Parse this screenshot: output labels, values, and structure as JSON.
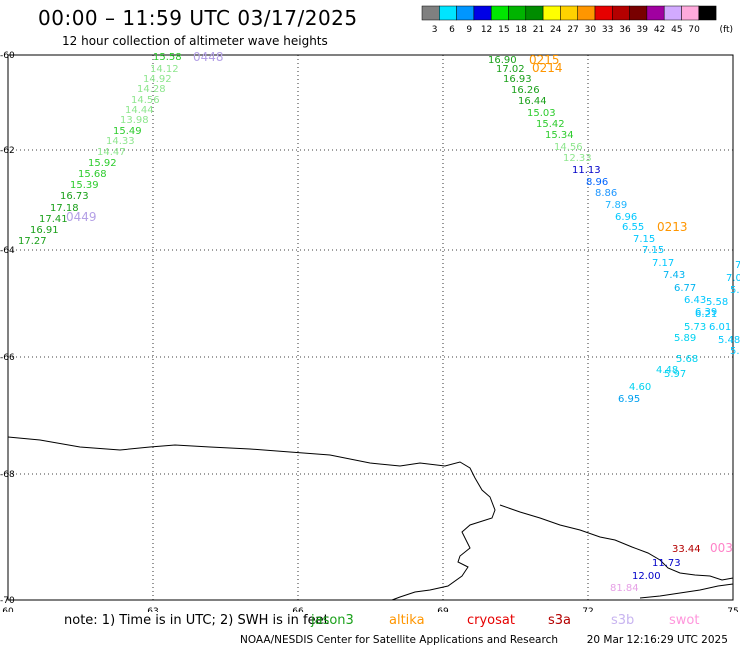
{
  "header": {
    "title": "00:00 – 11:59 UTC 03/17/2025",
    "subtitle": "12 hour collection of altimeter wave heights"
  },
  "colorbar": {
    "unit": "(ft)",
    "bins": [
      {
        "label": "3",
        "color": "#808080"
      },
      {
        "label": "6",
        "color": "#00e5ff"
      },
      {
        "label": "9",
        "color": "#0096ff"
      },
      {
        "label": "12",
        "color": "#0000e6"
      },
      {
        "label": "15",
        "color": "#00e600"
      },
      {
        "label": "18",
        "color": "#00b400"
      },
      {
        "label": "21",
        "color": "#008c00"
      },
      {
        "label": "24",
        "color": "#ffff00"
      },
      {
        "label": "27",
        "color": "#ffd200"
      },
      {
        "label": "30",
        "color": "#ff9600"
      },
      {
        "label": "33",
        "color": "#e60000"
      },
      {
        "label": "36",
        "color": "#b40000"
      },
      {
        "label": "39",
        "color": "#780000"
      },
      {
        "label": "42",
        "color": "#a000a0"
      },
      {
        "label": "45",
        "color": "#d2aaff"
      },
      {
        "label": "70",
        "color": "#ffaadc"
      },
      {
        "label": "",
        "color": "#000000"
      }
    ]
  },
  "map": {
    "lon_range": [
      60,
      75
    ],
    "lat_range": [
      -70,
      -60
    ],
    "lon_ticks": [
      "60",
      "63",
      "66",
      "69",
      "72",
      "75"
    ],
    "lat_ticks": [
      "-60",
      "-62",
      "-64",
      "-66",
      "-68",
      "-70"
    ],
    "grid": "dotted"
  },
  "tracks": [
    {
      "label": "0448",
      "label_color": "#b4a0e6",
      "points": [
        {
          "v": "15.58",
          "c": "#2ecc2e"
        },
        {
          "v": "14.12",
          "c": "#8ee68e"
        },
        {
          "v": "14.92",
          "c": "#8ee68e"
        },
        {
          "v": "14.28",
          "c": "#8ee68e"
        },
        {
          "v": "14.56",
          "c": "#8ee68e"
        },
        {
          "v": "14.44",
          "c": "#8ee68e"
        },
        {
          "v": "13.98",
          "c": "#8ee68e"
        },
        {
          "v": "15.49",
          "c": "#2ecc2e"
        },
        {
          "v": "14.33",
          "c": "#8ee68e"
        },
        {
          "v": "14.47",
          "c": "#8ee68e"
        },
        {
          "v": "15.92",
          "c": "#2ecc2e"
        },
        {
          "v": "15.68",
          "c": "#2ecc2e"
        },
        {
          "v": "15.39",
          "c": "#2ecc2e"
        },
        {
          "v": "16.73",
          "c": "#1aa01a"
        },
        {
          "v": "17.18",
          "c": "#1aa01a"
        },
        {
          "v": "17.41",
          "c": "#1aa01a"
        },
        {
          "v": "16.91",
          "c": "#1aa01a"
        },
        {
          "v": "17.27",
          "c": "#1aa01a"
        }
      ],
      "end_label": "0449",
      "end_label_color": "#b4a0e6"
    },
    {
      "label": "0215",
      "label_color": "#ff9600",
      "label2": "0214",
      "label2_color": "#ff9600",
      "label3": "0213",
      "label3_color": "#ff9600",
      "points": [
        {
          "v": "16.90",
          "c": "#1aa01a"
        },
        {
          "v": "17.02",
          "c": "#1aa01a"
        },
        {
          "v": "16.93",
          "c": "#1aa01a"
        },
        {
          "v": "16.26",
          "c": "#1aa01a"
        },
        {
          "v": "16.44",
          "c": "#1aa01a"
        },
        {
          "v": "15.03",
          "c": "#2ecc2e"
        },
        {
          "v": "15.42",
          "c": "#2ecc2e"
        },
        {
          "v": "15.34",
          "c": "#2ecc2e"
        },
        {
          "v": "14.56",
          "c": "#8ee68e"
        },
        {
          "v": "12.33",
          "c": "#8ee68e"
        },
        {
          "v": "11.13",
          "c": "#0000c8"
        },
        {
          "v": "8.96",
          "c": "#0064ff"
        },
        {
          "v": "8.86",
          "c": "#1e96ff"
        },
        {
          "v": "7.89",
          "c": "#1eb4ff"
        },
        {
          "v": "6.96",
          "c": "#00c8ff"
        },
        {
          "v": "6.55",
          "c": "#00c8ff"
        },
        {
          "v": "7.15",
          "c": "#00c8ff"
        },
        {
          "v": "7.15",
          "c": "#00c8ff"
        },
        {
          "v": "7.17",
          "c": "#00c8ff"
        },
        {
          "v": "7.43",
          "c": "#00b4f0"
        },
        {
          "v": "6.77",
          "c": "#00b4f0"
        },
        {
          "v": "6.43",
          "c": "#00c8ff"
        },
        {
          "v": "6.39",
          "c": "#00c8ff"
        },
        {
          "v": "6.21",
          "c": "#00c8ff"
        },
        {
          "v": "5.73",
          "c": "#00d2f0"
        },
        {
          "v": "5.89",
          "c": "#00d2f0"
        },
        {
          "v": "5.68",
          "c": "#00d2f0"
        },
        {
          "v": "4.48",
          "c": "#00d2f0"
        },
        {
          "v": "5.97",
          "c": "#00d2f0"
        },
        {
          "v": "4.60",
          "c": "#00d2f0"
        },
        {
          "v": "6.95",
          "c": "#00a0f0"
        }
      ]
    },
    {
      "label": "",
      "points": [
        {
          "v": "7.",
          "c": "#00c8ff"
        },
        {
          "v": "7.0",
          "c": "#00c8ff"
        },
        {
          "v": "5.80",
          "c": "#00c8ff"
        },
        {
          "v": "5.58",
          "c": "#00c8ff"
        },
        {
          "v": "6.01",
          "c": "#00c8ff"
        },
        {
          "v": "5.48",
          "c": "#00c8ff"
        },
        {
          "v": "5.",
          "c": "#00c8ff"
        }
      ]
    },
    {
      "label": "003",
      "label_color": "#ff82c8",
      "points": [
        {
          "v": "33.44",
          "c": "#b40000"
        },
        {
          "v": "11.73",
          "c": "#0000c8"
        },
        {
          "v": "12.00",
          "c": "#0000c8"
        },
        {
          "v": "81.84",
          "c": "#e6a0e6"
        }
      ]
    }
  ],
  "footer": {
    "note": "note: 1) Time is in UTC; 2) SWH is in feet",
    "satellites": [
      {
        "name": "jason3",
        "color": "#1aa01a"
      },
      {
        "name": "altika",
        "color": "#ff9600"
      },
      {
        "name": "cryosat",
        "color": "#e60000"
      },
      {
        "name": "s3a",
        "color": "#b40000"
      },
      {
        "name": "s3b",
        "color": "#c8b4f0"
      },
      {
        "name": "swot",
        "color": "#ff96dc"
      }
    ],
    "credit": "NOAA/NESDIS Center for Satellite Applications and Research",
    "timestamp": "20 Mar 12:16:29 UTC 2025"
  }
}
